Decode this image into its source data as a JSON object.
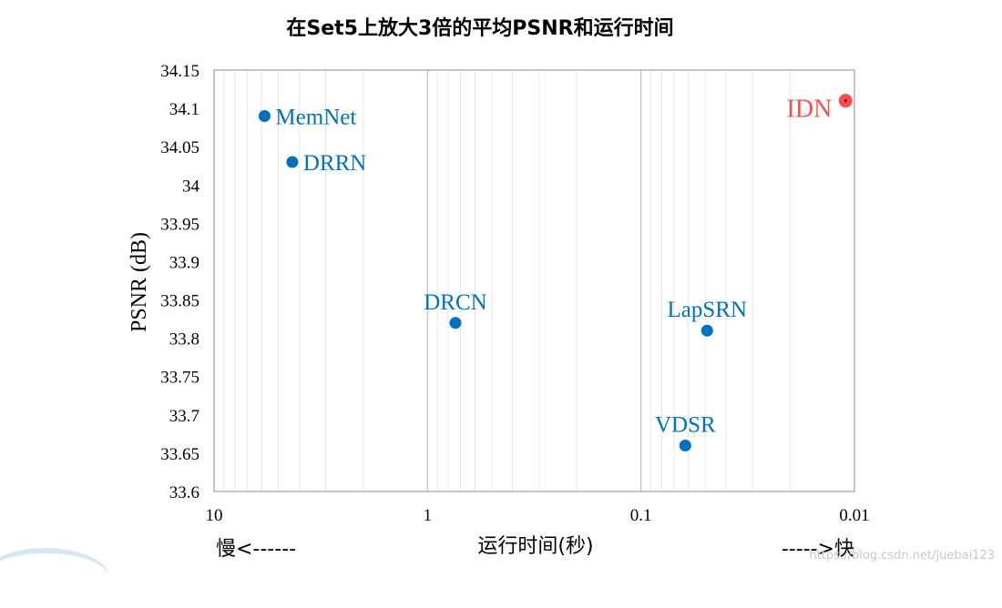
{
  "chart_data": {
    "type": "scatter",
    "title": "在Set5上放大3倍的平均PSNR和运行时间",
    "ylabel": "PSNR (dB)",
    "xlabel": "运行时间(秒)",
    "x_scale": "log",
    "x_reversed": true,
    "xlim": [
      10,
      0.01
    ],
    "ylim": [
      33.6,
      34.15
    ],
    "y_ticks": [
      "34.15",
      "34.1",
      "34.05",
      "34",
      "33.95",
      "33.9",
      "33.85",
      "33.8",
      "33.75",
      "33.7",
      "33.65",
      "33.6"
    ],
    "x_ticks": [
      "10",
      "1",
      "0.1",
      "0.01"
    ],
    "grid": true,
    "slow_label": "慢<------",
    "fast_label": "----->快",
    "watermark": "https://blog.csdn.net/juebai123",
    "colors": {
      "default": "#0070c0",
      "highlight": "#ff4b4b"
    },
    "points": [
      {
        "name": "MemNet",
        "x": 5.8,
        "y": 34.09,
        "color": "#0070c0",
        "label_pos": "right"
      },
      {
        "name": "DRRN",
        "x": 4.3,
        "y": 34.03,
        "color": "#0070c0",
        "label_pos": "right"
      },
      {
        "name": "DRCN",
        "x": 0.74,
        "y": 33.82,
        "color": "#0070c0",
        "label_pos": "above"
      },
      {
        "name": "LapSRN",
        "x": 0.049,
        "y": 33.81,
        "color": "#0070c0",
        "label_pos": "above"
      },
      {
        "name": "VDSR",
        "x": 0.062,
        "y": 33.66,
        "color": "#0070c0",
        "label_pos": "above"
      },
      {
        "name": "IDN",
        "x": 0.011,
        "y": 34.11,
        "color": "#ff4b4b",
        "label_pos": "left"
      }
    ]
  }
}
